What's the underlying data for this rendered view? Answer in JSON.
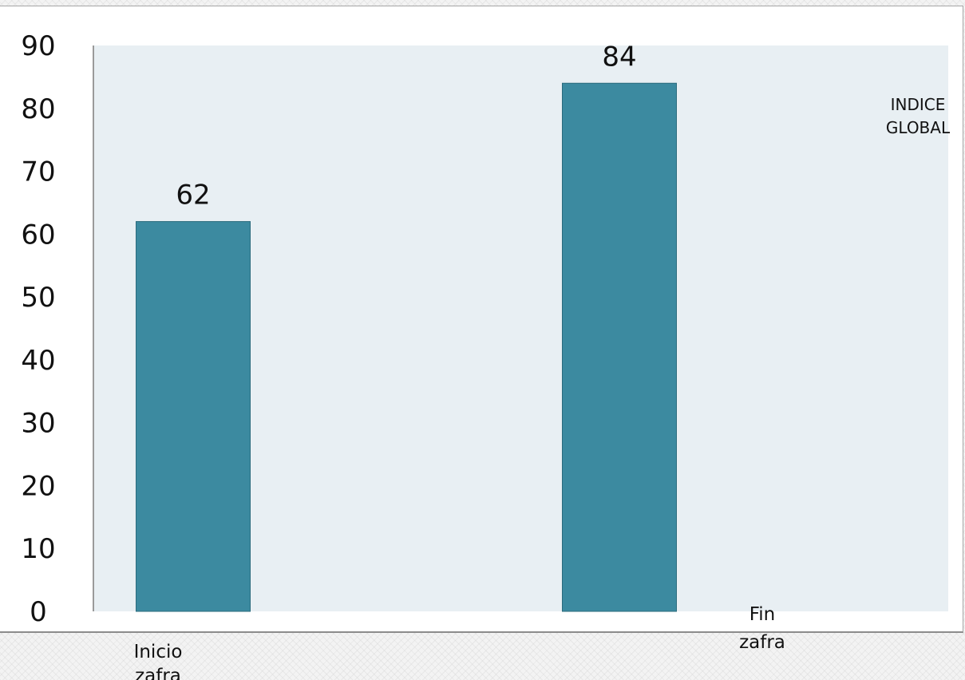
{
  "chart_data": {
    "type": "bar",
    "categories": [
      "Inicio zafra",
      "Fin zafra"
    ],
    "series": [
      {
        "name": "INDICE GLOBAL",
        "values": [
          62,
          84
        ]
      }
    ],
    "ylim": [
      0,
      90
    ],
    "yticks": [
      0,
      10,
      20,
      30,
      40,
      50,
      60,
      70,
      80,
      90
    ],
    "data_labels": true,
    "grid": false,
    "legend": "right",
    "colors": {
      "bar": "#3c8aa0",
      "bar_border": "#2b6b7d",
      "plot_background": "#e8eff3",
      "axis": "#9a9a9a"
    }
  }
}
